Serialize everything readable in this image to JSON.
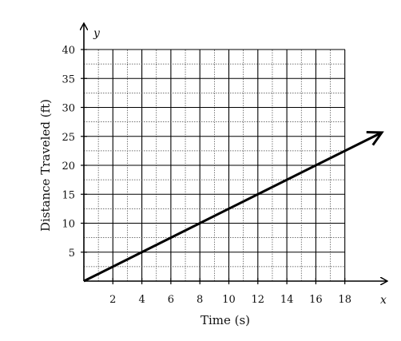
{
  "chart_data": {
    "type": "line",
    "xlabel": "Time (s)",
    "ylabel": "Distance Traveled (ft)",
    "x_axis_var": "x",
    "y_axis_var": "y",
    "xlim": [
      0,
      18
    ],
    "ylim": [
      0,
      40
    ],
    "x_ticks": [
      "2",
      "4",
      "6",
      "8",
      "10",
      "12",
      "14",
      "16",
      "18"
    ],
    "y_ticks": [
      "5",
      "10",
      "15",
      "20",
      "25",
      "30",
      "35",
      "40"
    ],
    "grid": true,
    "line_color": "#000000",
    "series": [
      {
        "x": [
          0,
          4,
          8,
          12,
          16,
          20.5
        ],
        "y": [
          0,
          5,
          10,
          15,
          20,
          25.6
        ]
      }
    ]
  }
}
